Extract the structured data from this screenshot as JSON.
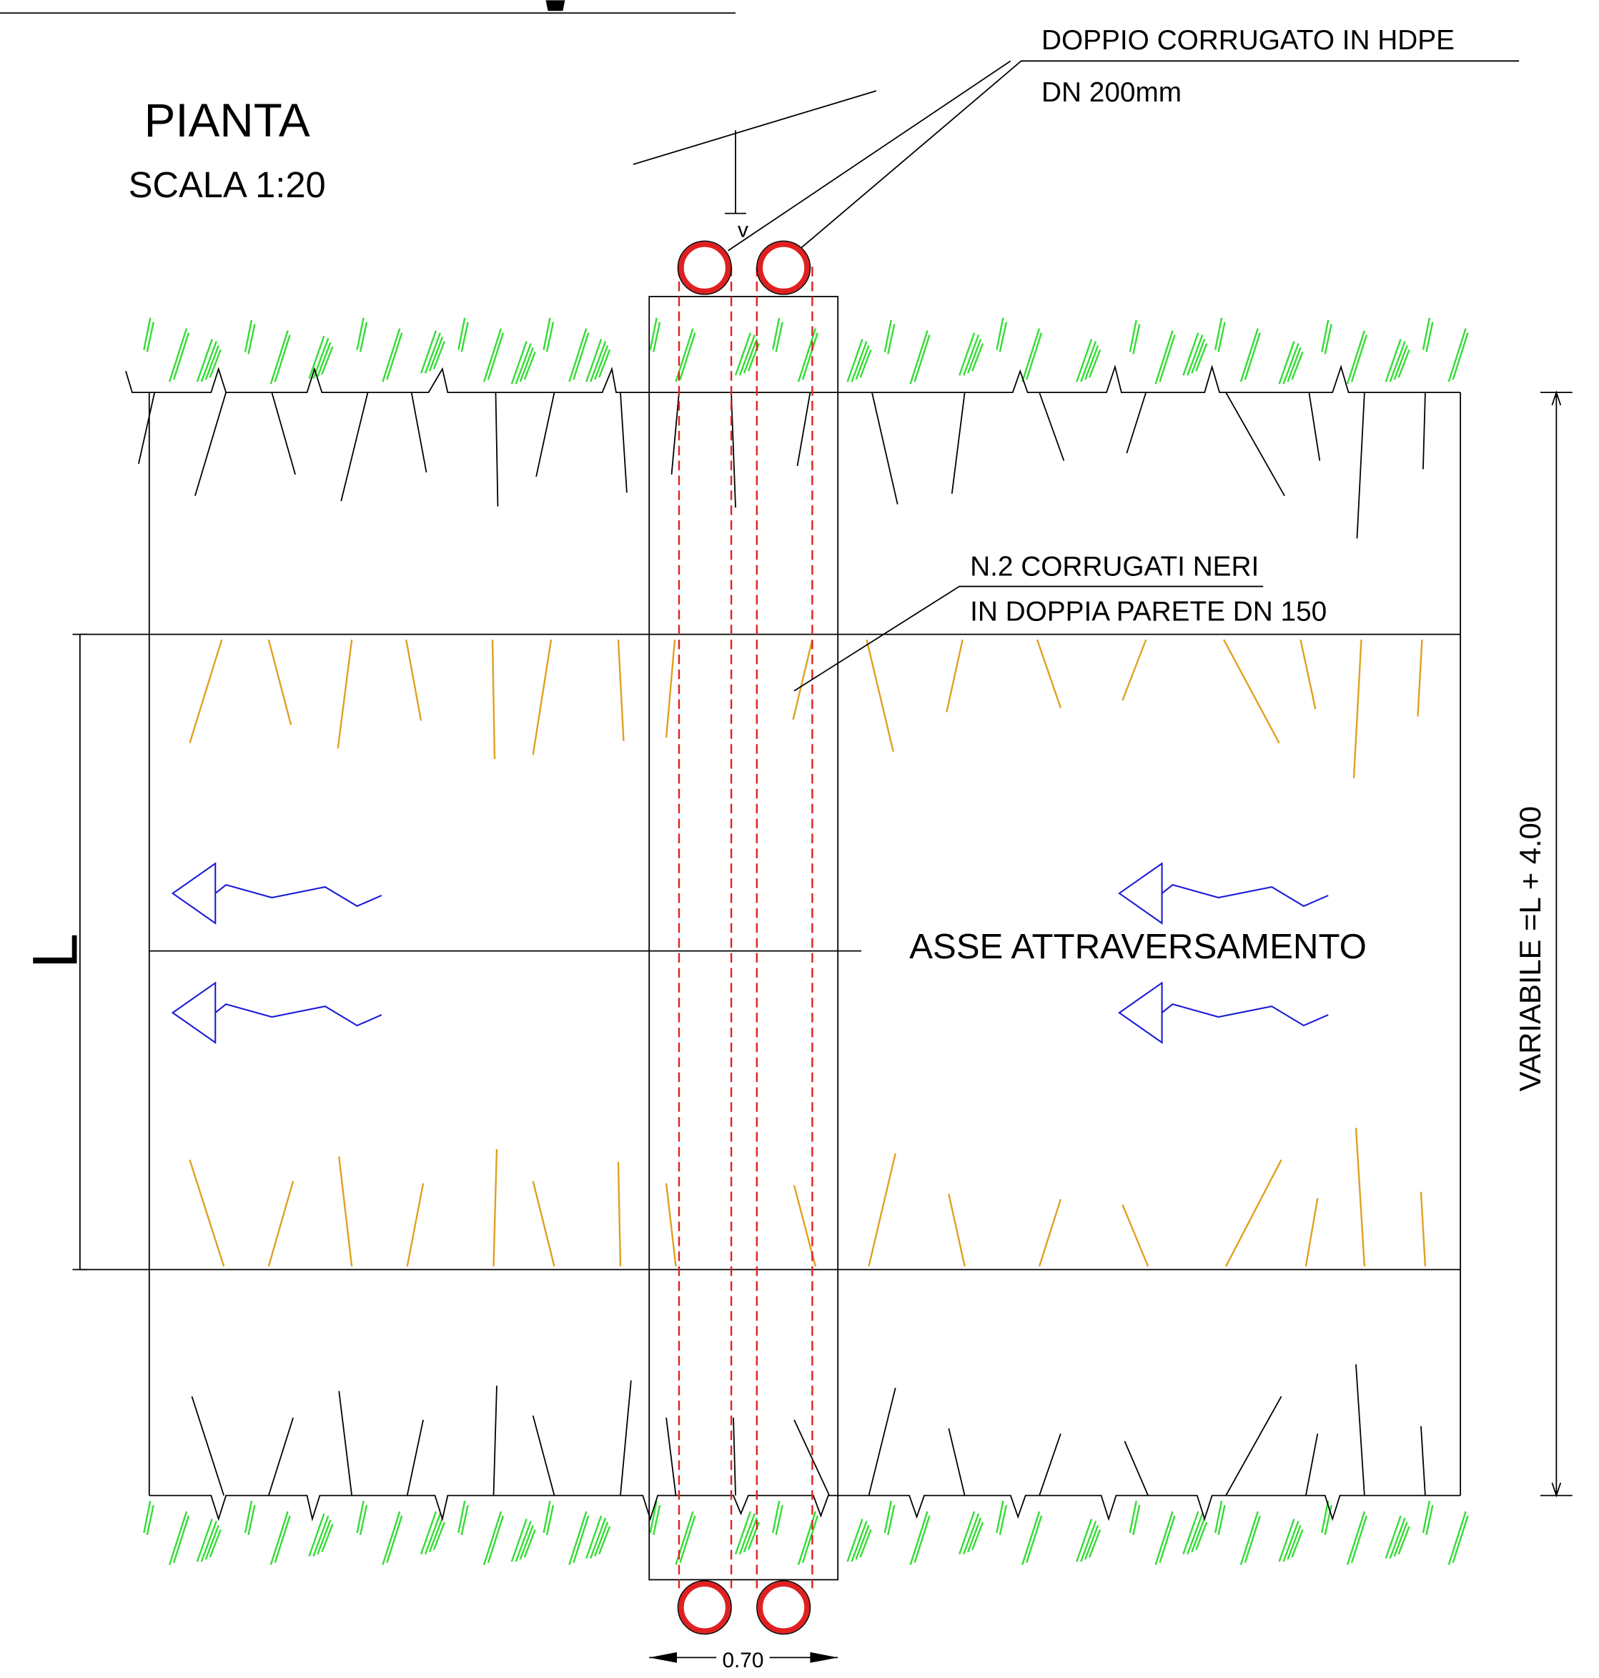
{
  "header": {
    "title": "PIANTA",
    "scale": "SCALA 1:20"
  },
  "callouts": [
    {
      "lines": [
        "DOPPIO CORRUGATO IN HDPE",
        "DN 200mm"
      ]
    },
    {
      "lines": [
        "N.2 CORRUGATI NERI",
        "IN DOPPIA PARETE DN 150"
      ]
    }
  ],
  "axis_label": "ASSE ATTRAVERSAMENTO",
  "level_marker": "v",
  "dimensions": {
    "length": "L",
    "total": "VARIABILE =L + 4.00",
    "width": "0.70"
  }
}
